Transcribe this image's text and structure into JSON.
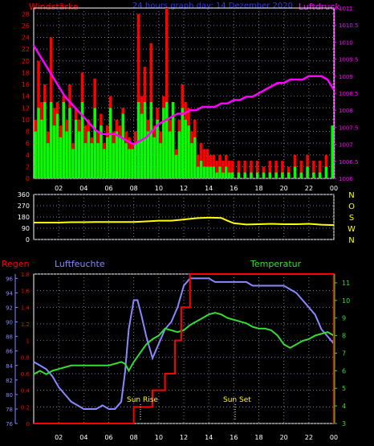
{
  "header": {
    "left_label": "Windstärke",
    "center_label": "24 hours graph day: 14 Dezember 2020",
    "right_label": "Luftdruck"
  },
  "lower_header": {
    "rain_label": "Regen",
    "humidity_label": "Luftfeuchte",
    "temp_label": "Temperatur"
  },
  "annotations": {
    "sunrise": "Sun Rise",
    "sunset": "Sun Set"
  },
  "colors": {
    "wind_gust": "#ff0000",
    "wind_avg": "#00ff00",
    "wind_base": "#000000",
    "pressure": "#ff00ff",
    "direction": "#ffff00",
    "rain": "#ff0000",
    "humidity": "#8888ff",
    "temperature": "#33dd33",
    "axis": "#ffffff",
    "grid": "#7777aa",
    "header_left": "#ff0000",
    "header_center": "#3333ff",
    "header_right": "#ff00ff"
  },
  "chart_data": [
    {
      "type": "bar",
      "name": "wind_pressure",
      "xlabel": "",
      "x_ticks": [
        "02",
        "04",
        "06",
        "08",
        "10",
        "12",
        "14",
        "16",
        "18",
        "20",
        "22",
        "00"
      ],
      "x_range": [
        0,
        24
      ],
      "y_left": {
        "label": "Windstärke",
        "ticks": [
          0,
          2,
          4,
          6,
          8,
          10,
          12,
          14,
          16,
          18,
          20,
          22,
          24,
          26,
          28
        ],
        "range": [
          0,
          29
        ]
      },
      "y_right": {
        "label": "Luftdruck",
        "ticks": [
          "1006",
          "1006.5",
          "1007",
          "1007.5",
          "1008",
          "1008.5",
          "1009",
          "1009.5",
          "1010",
          "1010.5",
          "1011"
        ],
        "range": [
          1006,
          1011
        ]
      },
      "series": [
        {
          "name": "gust",
          "x": [
            0.25,
            0.5,
            0.75,
            1,
            1.25,
            1.5,
            1.75,
            2,
            2.25,
            2.5,
            2.75,
            3,
            3.25,
            3.5,
            3.75,
            4,
            4.25,
            4.5,
            4.75,
            5,
            5.25,
            5.5,
            5.75,
            6,
            6.25,
            6.5,
            6.75,
            7,
            7.25,
            7.5,
            7.75,
            8,
            8.25,
            8.5,
            8.75,
            9,
            9.25,
            9.5,
            9.75,
            10,
            10.25,
            10.5,
            10.75,
            11,
            11.25,
            11.5,
            11.75,
            12,
            12.25,
            12.5,
            12.75,
            13,
            13.25,
            13.5,
            13.75,
            14,
            14.25,
            14.5,
            14.75,
            15,
            15.25,
            15.5,
            15.75,
            16,
            16.5,
            17,
            17.5,
            18,
            18.5,
            19,
            19.5,
            20,
            20.5,
            21,
            21.5,
            22,
            22.5,
            23,
            23.5,
            24
          ],
          "values": [
            10,
            20,
            13,
            16,
            8,
            24,
            12,
            13,
            9,
            14,
            10,
            16,
            6,
            12,
            10,
            18,
            9,
            10,
            7,
            17,
            8,
            11,
            6,
            9,
            14,
            8,
            10,
            9,
            12,
            8,
            7,
            6,
            8,
            28,
            14,
            19,
            10,
            23,
            9,
            12,
            8,
            14,
            29,
            10,
            13,
            5,
            10,
            16,
            13,
            12,
            8,
            10,
            4,
            6,
            5,
            5,
            4,
            4,
            3,
            4,
            3,
            4,
            3,
            3,
            3,
            3,
            3,
            3,
            2,
            3,
            3,
            3,
            2,
            4,
            3,
            4,
            3,
            3,
            4,
            3
          ]
        },
        {
          "name": "average",
          "x": [
            0.25,
            0.5,
            0.75,
            1,
            1.25,
            1.5,
            1.75,
            2,
            2.25,
            2.5,
            2.75,
            3,
            3.25,
            3.5,
            3.75,
            4,
            4.25,
            4.5,
            4.75,
            5,
            5.25,
            5.5,
            5.75,
            6,
            6.25,
            6.5,
            6.75,
            7,
            7.25,
            7.5,
            7.75,
            8,
            8.25,
            8.5,
            8.75,
            9,
            9.25,
            9.5,
            9.75,
            10,
            10.25,
            10.5,
            10.75,
            11,
            11.25,
            11.5,
            11.75,
            12,
            12.25,
            12.5,
            12.75,
            13,
            13.25,
            13.5,
            13.75,
            14,
            14.25,
            14.5,
            14.75,
            15,
            15.25,
            15.5,
            15.75,
            16,
            16.5,
            17,
            17.5,
            18,
            18.5,
            19,
            19.5,
            20,
            20.5,
            21,
            21.5,
            22,
            22.5,
            23,
            23.5,
            24
          ],
          "values": [
            8,
            12,
            10,
            13,
            6,
            13,
            9,
            11,
            7,
            13,
            8,
            12,
            5,
            10,
            8,
            13,
            6,
            8,
            6,
            12,
            6,
            9,
            5,
            7,
            12,
            6,
            8,
            7,
            11,
            6,
            5,
            5,
            6,
            13,
            11,
            13,
            8,
            13,
            7,
            10,
            6,
            12,
            13,
            8,
            13,
            4,
            8,
            12,
            10,
            9,
            6,
            7,
            2,
            3,
            2,
            2,
            2,
            2,
            1,
            2,
            1,
            2,
            1,
            1,
            1,
            1,
            1,
            1,
            1,
            1,
            1,
            1,
            1,
            2,
            1,
            2,
            1,
            1,
            2,
            9
          ]
        },
        {
          "name": "pressure",
          "x": [
            0,
            0.5,
            1,
            1.5,
            2,
            2.5,
            3,
            3.5,
            4,
            4.5,
            5,
            5.5,
            6,
            6.5,
            7,
            7.5,
            8,
            8.5,
            9,
            9.5,
            10,
            10.5,
            11,
            11.5,
            12,
            12.5,
            13,
            13.5,
            14,
            14.5,
            15,
            15.5,
            16,
            16.5,
            17,
            17.5,
            18,
            18.5,
            19,
            19.5,
            20,
            20.5,
            21,
            21.5,
            22,
            22.5,
            23,
            23.5,
            24
          ],
          "values": [
            1009.9,
            1009.6,
            1009.3,
            1009.0,
            1008.7,
            1008.4,
            1008.2,
            1008.0,
            1007.8,
            1007.6,
            1007.4,
            1007.3,
            1007.3,
            1007.3,
            1007.2,
            1007.1,
            1007.0,
            1007.1,
            1007.2,
            1007.4,
            1007.6,
            1007.7,
            1007.8,
            1007.9,
            1007.9,
            1008.0,
            1008.0,
            1008.1,
            1008.1,
            1008.1,
            1008.2,
            1008.2,
            1008.3,
            1008.3,
            1008.4,
            1008.4,
            1008.5,
            1008.6,
            1008.7,
            1008.8,
            1008.8,
            1008.9,
            1008.9,
            1008.9,
            1009.0,
            1009.0,
            1009.0,
            1008.9,
            1008.6
          ]
        }
      ]
    },
    {
      "type": "line",
      "name": "wind_direction",
      "x_range": [
        0,
        24
      ],
      "y_left": {
        "ticks": [
          0,
          90,
          180,
          270,
          360
        ],
        "range": [
          0,
          360
        ]
      },
      "y_right": {
        "labels": [
          "N",
          "W",
          "S",
          "O",
          "N"
        ]
      },
      "series": [
        {
          "name": "direction",
          "x": [
            0,
            1,
            2,
            3,
            4,
            5,
            6,
            7,
            8,
            9,
            10,
            11,
            12,
            13,
            14,
            15,
            15.5,
            16,
            17,
            18,
            19,
            20,
            21,
            22,
            23,
            24
          ],
          "values": [
            135,
            135,
            135,
            138,
            138,
            140,
            140,
            140,
            140,
            145,
            150,
            150,
            160,
            170,
            175,
            172,
            150,
            130,
            120,
            122,
            125,
            122,
            122,
            125,
            118,
            115
          ]
        }
      ]
    },
    {
      "type": "line",
      "name": "rain_humidity_temperature",
      "x_ticks": [
        "02",
        "04",
        "06",
        "08",
        "10",
        "12",
        "14",
        "16",
        "18",
        "20",
        "22",
        "00"
      ],
      "x_range": [
        0,
        24
      ],
      "y_rain": {
        "label": "Regen",
        "ticks": [
          "0",
          "0.2",
          "0.4",
          "0.6",
          "0.8",
          "1",
          "1.2",
          "1.4",
          "1.6",
          "1.8"
        ],
        "range": [
          0,
          1.8
        ]
      },
      "y_humidity": {
        "label": "Luftfeuchte",
        "ticks": [
          76,
          78,
          80,
          82,
          84,
          86,
          88,
          90,
          92,
          94,
          96
        ],
        "range": [
          76,
          96.6
        ]
      },
      "y_temperature": {
        "label": "Temperatur",
        "ticks": [
          3,
          4,
          5,
          6,
          7,
          8,
          9,
          10,
          11
        ],
        "range": [
          3,
          11.5
        ]
      },
      "series": [
        {
          "name": "rain",
          "x": [
            0,
            8.0,
            8.0,
            9.5,
            9.5,
            10.5,
            10.5,
            11.3,
            11.3,
            11.8,
            11.8,
            12.5,
            12.5,
            24,
            24
          ],
          "values": [
            0,
            0,
            0.2,
            0.2,
            0.4,
            0.4,
            0.6,
            0.6,
            1.0,
            1.0,
            1.4,
            1.4,
            1.8,
            1.8,
            0
          ]
        },
        {
          "name": "humidity",
          "x": [
            0,
            0.5,
            1,
            1.5,
            2,
            2.5,
            3,
            3.5,
            4,
            4.5,
            5,
            5.5,
            6,
            6.5,
            7,
            7.3,
            7.6,
            8.0,
            8.3,
            8.6,
            9,
            9.5,
            10,
            10.5,
            11,
            11.5,
            12,
            12.5,
            13,
            13.5,
            14,
            14.5,
            15,
            15.5,
            16,
            16.5,
            17,
            17.5,
            18,
            18.5,
            19,
            19.5,
            20,
            20.5,
            21,
            21.5,
            22,
            22.5,
            23,
            23.5,
            24
          ],
          "values": [
            84.5,
            84,
            83.5,
            82.5,
            81,
            80,
            79,
            78.5,
            78,
            78,
            78,
            78.5,
            78,
            78,
            79,
            83,
            89,
            93,
            93,
            91,
            88,
            85,
            87,
            89,
            90,
            92,
            95,
            96,
            96,
            96,
            96,
            95.5,
            95.5,
            95.5,
            95.5,
            95.5,
            95.5,
            95,
            95,
            95,
            95,
            95,
            95,
            94.5,
            94,
            93,
            92,
            91,
            89,
            88,
            87
          ]
        },
        {
          "name": "temperature",
          "x": [
            0,
            0.5,
            1,
            1.5,
            2,
            2.5,
            3,
            3.5,
            4,
            4.5,
            5,
            5.5,
            6,
            6.5,
            7,
            7.3,
            7.6,
            8,
            8.5,
            9,
            9.5,
            10,
            10.5,
            11,
            11.5,
            12,
            12.5,
            13,
            13.5,
            14,
            14.5,
            15,
            15.5,
            16,
            16.5,
            17,
            17.5,
            18,
            18.5,
            19,
            19.5,
            20,
            20.5,
            21,
            21.5,
            22,
            22.5,
            23,
            23.5,
            24
          ],
          "values": [
            5.8,
            6.0,
            5.8,
            6.0,
            6.1,
            6.2,
            6.3,
            6.3,
            6.3,
            6.3,
            6.3,
            6.3,
            6.3,
            6.4,
            6.5,
            6.4,
            6.0,
            6.5,
            7.0,
            7.5,
            7.8,
            8.0,
            8.4,
            8.3,
            8.2,
            8.3,
            8.6,
            8.8,
            9.0,
            9.2,
            9.3,
            9.2,
            9.0,
            8.9,
            8.8,
            8.7,
            8.5,
            8.4,
            8.4,
            8.3,
            8.0,
            7.5,
            7.3,
            7.5,
            7.7,
            7.8,
            8.0,
            8.1,
            8.2,
            8.0
          ]
        }
      ]
    }
  ]
}
